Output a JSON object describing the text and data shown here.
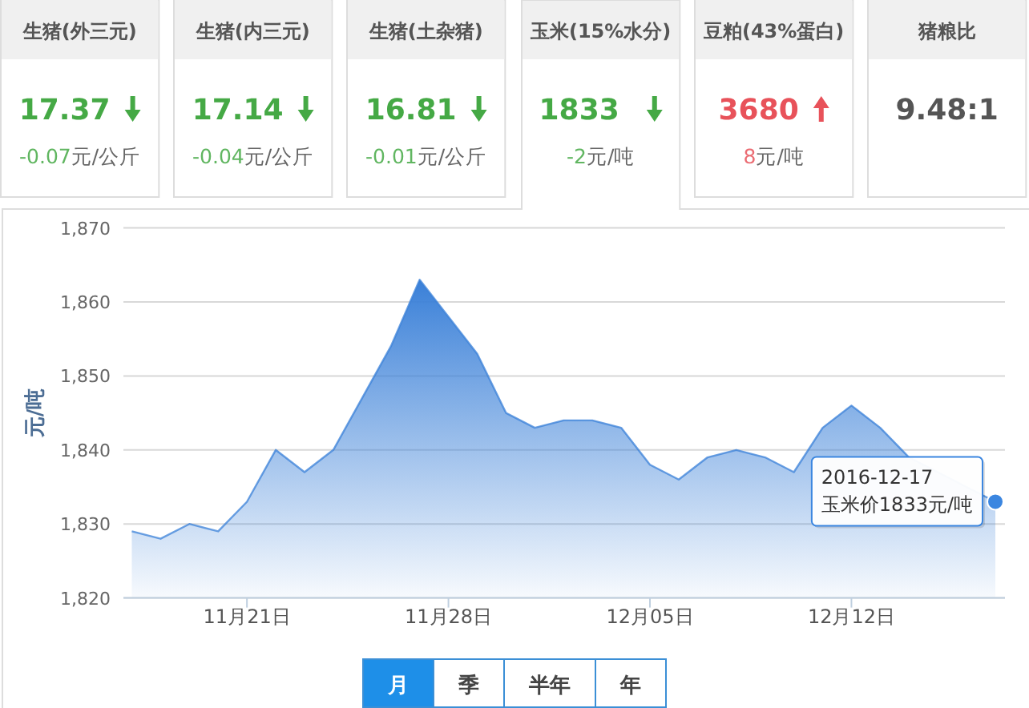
{
  "chart_data": [
    {
      "type": "other",
      "categories": [
        "生猪(外三元)",
        "生猪(内三元)",
        "生猪(土杂猪)",
        "玉米(15%水分)",
        "豆粕(43%蛋白)",
        "猪粮比"
      ],
      "annotations": [
        "17.37",
        "17.14",
        "16.81",
        "1833",
        "3680",
        "9.48:1"
      ],
      "values": [
        -0.07,
        -0.04,
        -0.01,
        -2,
        8,
        null
      ],
      "value_labels": [
        "-0.07元/公斤",
        "-0.04元/公斤",
        "-0.01元/公斤",
        "-2元/吨",
        "8元/吨",
        null
      ]
    },
    {
      "type": "area",
      "ylabel": "元/吨",
      "x": [
        "2016-11-17",
        "2016-11-18",
        "2016-11-19",
        "2016-11-20",
        "2016-11-21",
        "2016-11-22",
        "2016-11-23",
        "2016-11-24",
        "2016-11-25",
        "2016-11-26",
        "2016-11-27",
        "2016-11-28",
        "2016-11-29",
        "2016-11-30",
        "2016-12-01",
        "2016-12-02",
        "2016-12-03",
        "2016-12-04",
        "2016-12-05",
        "2016-12-06",
        "2016-12-07",
        "2016-12-08",
        "2016-12-09",
        "2016-12-10",
        "2016-12-11",
        "2016-12-12",
        "2016-12-13",
        "2016-12-14",
        "2016-12-15",
        "2016-12-16",
        "2016-12-17"
      ],
      "series": [
        {
          "color": "#3a80d8",
          "values": [
            1829,
            1828,
            1830,
            1829,
            1833,
            1840,
            1837,
            1840,
            1847,
            1854,
            1863,
            1858,
            1853,
            1845,
            1843,
            1844,
            1844,
            1843,
            1838,
            1836,
            1839,
            1840,
            1839,
            1837,
            1843,
            1846,
            1843,
            1839,
            null,
            null,
            1833
          ]
        }
      ],
      "xlim": [
        "2016-11-16T17:00",
        "2016-12-17T08:00"
      ],
      "xticks": [
        {
          "value": "2016-11-21",
          "label": "11月21日"
        },
        {
          "value": "2016-11-28",
          "label": "11月28日"
        },
        {
          "value": "2016-12-05",
          "label": "12月05日"
        },
        {
          "value": "2016-12-12",
          "label": "12月12日"
        }
      ],
      "ylim": [
        1820,
        1870
      ],
      "yticks": [
        {
          "value": 1820,
          "label": "1,820"
        },
        {
          "value": 1830,
          "label": "1,830"
        },
        {
          "value": 1840,
          "label": "1,840"
        },
        {
          "value": 1850,
          "label": "1,850"
        },
        {
          "value": 1860,
          "label": "1,860"
        },
        {
          "value": 1870,
          "label": "1,870"
        }
      ],
      "grid": "y",
      "annotations": [
        "2016-12-17",
        {
          "text": "玉米价1833元/吨",
          "x": "2016-12-17",
          "y": 1833
        }
      ]
    },
    {
      "type": "other",
      "annotations": [
        "月",
        "季",
        "半年",
        "年"
      ]
    }
  ]
}
